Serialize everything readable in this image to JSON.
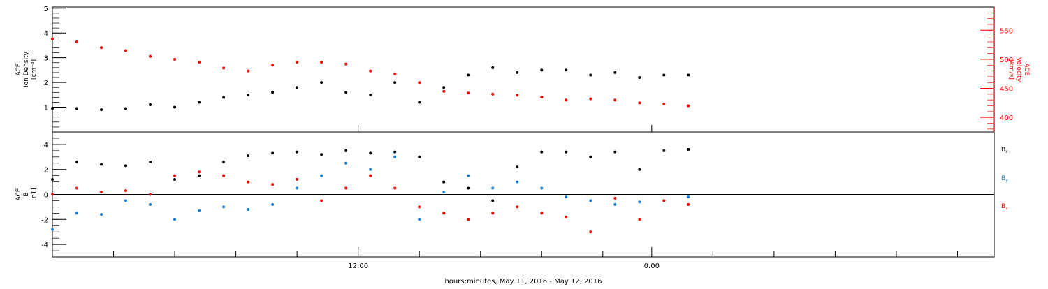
{
  "chart_data": [
    {
      "type": "scatter",
      "panel": "top",
      "ylabel_left": [
        "ACE",
        "Ion Density",
        "[cm⁻³]"
      ],
      "ylabel_right": [
        "ACE",
        "Velocity",
        "[km/s]"
      ],
      "y_ticks": [
        1,
        2,
        3,
        4,
        5
      ],
      "y2_ticks": [
        400,
        450,
        500,
        550
      ],
      "ylim": [
        0,
        5.05
      ],
      "y2lim": [
        375,
        590
      ],
      "colors": {
        "density": "#000000",
        "velocity": "#ff0000"
      },
      "series": [
        {
          "axis": "left",
          "x_hours": [
            0,
            1,
            2,
            3,
            4,
            5,
            6,
            7,
            8,
            9,
            10,
            11,
            12,
            13,
            14,
            15,
            16,
            17,
            18,
            19,
            20,
            21,
            22,
            23,
            24,
            25,
            26
          ],
          "values": [
            0.95,
            0.95,
            0.9,
            0.95,
            1.1,
            1.0,
            1.2,
            1.4,
            1.5,
            1.6,
            1.8,
            2.0,
            1.6,
            1.5,
            2.0,
            1.2,
            1.8,
            2.3,
            2.6,
            2.4,
            2.5,
            2.5,
            2.3,
            2.4,
            2.2,
            2.3,
            2.3
          ]
        },
        {
          "axis": "right",
          "x_hours": [
            0,
            1,
            2,
            3,
            4,
            5,
            6,
            7,
            8,
            9,
            10,
            11,
            12,
            13,
            14,
            15,
            16,
            17,
            18,
            19,
            20,
            21,
            22,
            23,
            24,
            25,
            26
          ],
          "values": [
            535,
            530,
            520,
            515,
            505,
            500,
            495,
            485,
            480,
            490,
            495,
            495,
            492,
            480,
            475,
            460,
            445,
            442,
            440,
            438,
            435,
            430,
            432,
            430,
            425,
            423,
            420
          ]
        }
      ]
    },
    {
      "type": "scatter",
      "panel": "bottom",
      "ylabel_left": [
        "ACE",
        "B",
        "[nT]"
      ],
      "y_ticks": [
        -4,
        -2,
        0,
        2,
        4
      ],
      "ylim": [
        -5,
        5
      ],
      "colors": {
        "Bx": "#000000",
        "By": "#1a7fd4",
        "Bz": "#ff0000"
      },
      "legend": [
        "Bx",
        "By",
        "Bz"
      ],
      "series": [
        {
          "name": "Bx",
          "x_hours": [
            0,
            1,
            2,
            3,
            4,
            5,
            6,
            7,
            8,
            9,
            10,
            11,
            12,
            13,
            14,
            15,
            16,
            17,
            18,
            19,
            20,
            21,
            22,
            23,
            24,
            25,
            26
          ],
          "values": [
            1.2,
            2.6,
            2.4,
            2.3,
            2.6,
            1.2,
            1.5,
            2.6,
            3.1,
            3.3,
            3.4,
            3.2,
            3.5,
            3.3,
            3.4,
            3.0,
            1.0,
            0.5,
            -0.5,
            2.2,
            3.4,
            3.4,
            3.0,
            3.4,
            2.0,
            3.5,
            3.6
          ]
        },
        {
          "name": "By",
          "x_hours": [
            0,
            1,
            2,
            3,
            4,
            5,
            6,
            7,
            8,
            9,
            10,
            11,
            12,
            13,
            14,
            15,
            16,
            17,
            18,
            19,
            20,
            21,
            22,
            23,
            24,
            25,
            26
          ],
          "values": [
            -2.8,
            -1.5,
            -1.6,
            -0.5,
            -0.8,
            -2.0,
            -1.3,
            -1.0,
            -1.2,
            -0.8,
            0.5,
            1.5,
            2.5,
            2.0,
            3.0,
            -2.0,
            0.2,
            1.5,
            0.5,
            1.0,
            0.5,
            -0.2,
            -0.5,
            -0.8,
            -0.6,
            -0.5,
            -0.2
          ]
        },
        {
          "name": "Bz",
          "x_hours": [
            0,
            1,
            2,
            3,
            4,
            5,
            6,
            7,
            8,
            9,
            10,
            11,
            12,
            13,
            14,
            15,
            16,
            17,
            18,
            19,
            20,
            21,
            22,
            23,
            24,
            25,
            26
          ],
          "values": [
            0.0,
            0.5,
            0.2,
            0.3,
            0.0,
            1.5,
            1.8,
            1.5,
            1.0,
            0.8,
            1.2,
            -0.5,
            0.5,
            1.5,
            0.5,
            -1.0,
            -1.5,
            -2.0,
            -1.5,
            -1.0,
            -1.5,
            -1.8,
            -3.0,
            -0.3,
            -2.0,
            -0.5,
            -0.8
          ]
        }
      ]
    }
  ],
  "x_axis": {
    "xlim_hours": [
      0,
      38.5
    ],
    "major_tick_labels": [
      {
        "label": "12:00",
        "hour": 12.5
      },
      {
        "label": "0:00",
        "hour": 24.5
      }
    ],
    "minor_tick_hours": [
      2.5,
      5,
      7.5,
      10,
      15,
      17.5,
      20,
      22.5,
      27,
      29.5,
      32,
      34.5,
      37
    ],
    "xlabel": "hours:minutes, May 11, 2016 - May 12, 2016"
  }
}
